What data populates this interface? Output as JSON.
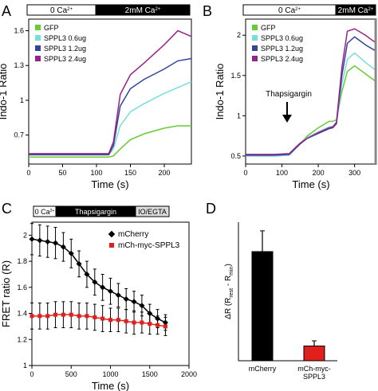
{
  "panels": {
    "A": {
      "letter": "A",
      "bar_left": "0 Ca",
      "bar_right": "2mM Ca"
    },
    "B": {
      "letter": "B",
      "bar_left": "0 Ca",
      "bar_right": "2mM Ca",
      "annotation": "Thapsigargin"
    },
    "C": {
      "letter": "C",
      "bar_left": "0 Ca",
      "bar_mid": "Thapsigargin",
      "bar_right": "IO/EGTA"
    },
    "D": {
      "letter": "D"
    }
  },
  "chart_data": [
    {
      "id": "A",
      "type": "line",
      "xlabel": "Time (s)",
      "ylabel": "Indo-1 Ratio",
      "xlim": [
        0,
        240
      ],
      "ylim": [
        0.45,
        1.7
      ],
      "xticks": [
        0,
        50,
        100,
        150,
        200
      ],
      "yticks": [
        0.7,
        1.0,
        1.3,
        1.6
      ],
      "legend": "top-left",
      "x": [
        0,
        30,
        60,
        90,
        118,
        125,
        135,
        150,
        170,
        200,
        220,
        240
      ],
      "series": [
        {
          "name": "GFP",
          "color": "#66cc33",
          "values": [
            0.51,
            0.51,
            0.51,
            0.51,
            0.51,
            0.52,
            0.58,
            0.66,
            0.71,
            0.76,
            0.78,
            0.78
          ]
        },
        {
          "name": "SPPL3 0.6ug",
          "color": "#77dddd",
          "values": [
            0.53,
            0.53,
            0.53,
            0.53,
            0.53,
            0.58,
            0.78,
            0.9,
            0.97,
            1.06,
            1.11,
            1.16
          ]
        },
        {
          "name": "SPPL3 1.2ug",
          "color": "#334499",
          "values": [
            0.53,
            0.53,
            0.53,
            0.53,
            0.53,
            0.61,
            0.95,
            1.1,
            1.18,
            1.27,
            1.34,
            1.36
          ]
        },
        {
          "name": "SPPL3 2.4ug",
          "color": "#992288",
          "values": [
            0.54,
            0.54,
            0.54,
            0.54,
            0.54,
            0.64,
            1.05,
            1.22,
            1.32,
            1.48,
            1.6,
            1.55
          ]
        }
      ]
    },
    {
      "id": "B",
      "type": "line",
      "xlabel": "Time (s)",
      "ylabel": "Indo-1 Ratio",
      "xlim": [
        0,
        360
      ],
      "ylim": [
        0.4,
        2.2
      ],
      "xticks": [
        0,
        100,
        200,
        300
      ],
      "yticks": [
        0.5,
        1.0,
        1.5,
        2.0
      ],
      "legend": "top-left",
      "x": [
        0,
        40,
        80,
        120,
        150,
        170,
        200,
        230,
        240,
        250,
        265,
        280,
        300,
        330,
        360
      ],
      "series": [
        {
          "name": "GFP",
          "color": "#66cc33",
          "values": [
            0.5,
            0.5,
            0.5,
            0.51,
            0.65,
            0.75,
            0.85,
            0.93,
            0.93,
            0.95,
            1.3,
            1.55,
            1.62,
            1.52,
            1.42
          ]
        },
        {
          "name": "SPPL3 0.6ug",
          "color": "#77dddd",
          "values": [
            0.5,
            0.5,
            0.5,
            0.51,
            0.65,
            0.73,
            0.8,
            0.86,
            0.87,
            0.9,
            1.4,
            1.7,
            1.78,
            1.66,
            1.56
          ]
        },
        {
          "name": "SPPL3 1.2ug",
          "color": "#334499",
          "values": [
            0.51,
            0.51,
            0.51,
            0.52,
            0.65,
            0.72,
            0.78,
            0.84,
            0.85,
            0.9,
            1.5,
            1.9,
            1.98,
            1.88,
            1.8
          ]
        },
        {
          "name": "SPPL3 2.4ug",
          "color": "#992288",
          "values": [
            0.52,
            0.52,
            0.52,
            0.53,
            0.66,
            0.72,
            0.79,
            0.85,
            0.86,
            0.92,
            1.6,
            2.05,
            2.08,
            2.0,
            1.9
          ]
        }
      ]
    },
    {
      "id": "C",
      "type": "line",
      "xlabel": "Time (s)",
      "ylabel": "FRET ratio (R)",
      "xlim": [
        0,
        2000
      ],
      "ylim": [
        1.0,
        2.1
      ],
      "xticks": [
        0,
        500,
        1000,
        1500,
        2000
      ],
      "yticks": [
        1.0,
        1.2,
        1.4,
        1.6,
        1.8,
        2.0
      ],
      "legend": "top-right",
      "x": [
        0,
        100,
        200,
        300,
        400,
        500,
        600,
        700,
        800,
        900,
        1000,
        1100,
        1200,
        1300,
        1400,
        1500,
        1600,
        1700
      ],
      "series": [
        {
          "name": "mCherry",
          "color": "#000000",
          "values": [
            1.97,
            1.96,
            1.95,
            1.94,
            1.91,
            1.86,
            1.78,
            1.7,
            1.64,
            1.6,
            1.57,
            1.54,
            1.51,
            1.49,
            1.46,
            1.4,
            1.36,
            1.33
          ],
          "errors": [
            0.12,
            0.12,
            0.12,
            0.12,
            0.11,
            0.11,
            0.1,
            0.1,
            0.1,
            0.1,
            0.1,
            0.09,
            0.08,
            0.08,
            0.08,
            0.07,
            0.07,
            0.06
          ]
        },
        {
          "name": "mCh-myc-SPPL3",
          "color": "#e0201c",
          "values": [
            1.38,
            1.38,
            1.38,
            1.39,
            1.39,
            1.39,
            1.38,
            1.38,
            1.37,
            1.36,
            1.35,
            1.35,
            1.34,
            1.33,
            1.33,
            1.32,
            1.31,
            1.3
          ],
          "errors": [
            0.1,
            0.1,
            0.1,
            0.1,
            0.1,
            0.1,
            0.1,
            0.1,
            0.1,
            0.1,
            0.09,
            0.09,
            0.09,
            0.09,
            0.08,
            0.08,
            0.07,
            0.07
          ]
        }
      ]
    },
    {
      "id": "D",
      "type": "bar",
      "ylabel": "ΔR (R - R)",
      "ylim": [
        0,
        0.8
      ],
      "categories": [
        "mCherry",
        "mCh-myc-\nSPPL3"
      ],
      "values": [
        0.63,
        0.085
      ],
      "errors": [
        0.12,
        0.03
      ],
      "colors": [
        "#000000",
        "#e0201c"
      ]
    }
  ]
}
